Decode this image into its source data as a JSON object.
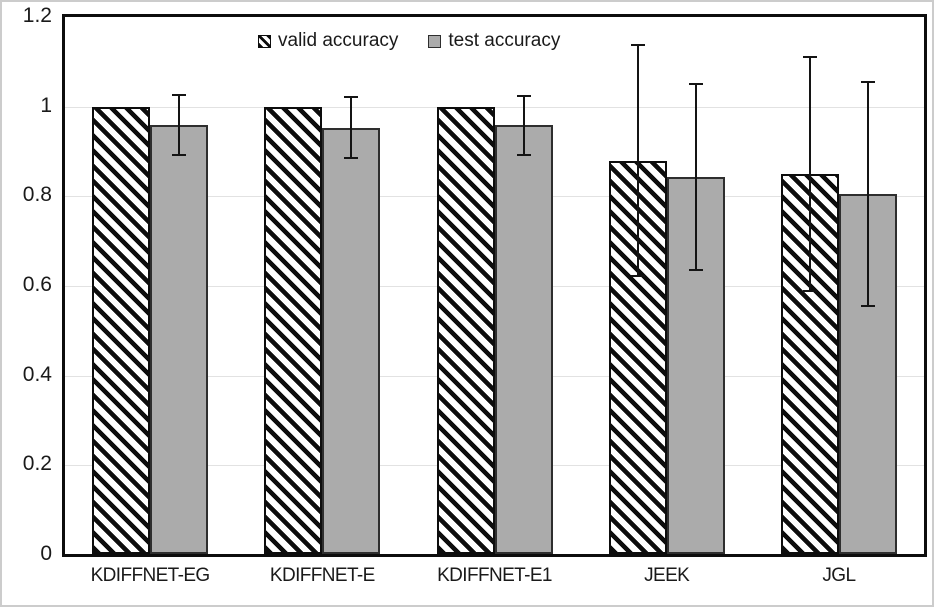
{
  "figure": {
    "background": "#ffffff",
    "outer_border_color": "#cccccc",
    "plot_border_color": "#0d0d0d",
    "gridline_color": "#e2e2e2"
  },
  "chart_data": {
    "type": "bar",
    "title": "",
    "xlabel": "",
    "ylabel": "",
    "categories": [
      "KDIFFNET-EG",
      "KDIFFNET-E",
      "KDIFFNET-E1",
      "JEEK",
      "JGL"
    ],
    "series": [
      {
        "name": "valid accuracy",
        "style": "diagonal-hatch",
        "fill": "#ffffff",
        "hatch_color": "#0d0d0d",
        "values": [
          1.0,
          1.0,
          1.0,
          0.88,
          0.85
        ],
        "errors": [
          0,
          0,
          0,
          0.257,
          0.26
        ]
      },
      {
        "name": "test accuracy",
        "style": "solid",
        "fill": "#ababab",
        "values": [
          0.96,
          0.953,
          0.959,
          0.843,
          0.806
        ],
        "errors": [
          0.067,
          0.068,
          0.066,
          0.208,
          0.25
        ]
      }
    ],
    "ylim": [
      0,
      1.2
    ],
    "ytick_values": [
      0,
      0.2,
      0.4,
      0.6,
      0.8,
      1,
      1.2
    ],
    "ytick_labels": [
      "0",
      "0.2",
      "0.4",
      "0.6",
      "0.8",
      "1",
      "1.2"
    ],
    "grid": true,
    "legend_position": "top-center",
    "error_bars": true
  }
}
